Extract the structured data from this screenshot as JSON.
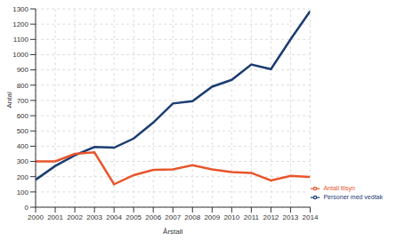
{
  "chart_data": {
    "type": "line",
    "x_label": "Årstall",
    "y_label": "Antal",
    "x": [
      2000,
      2001,
      2002,
      2003,
      2004,
      2005,
      2006,
      2007,
      2008,
      2009,
      2010,
      2011,
      2012,
      2013,
      2014
    ],
    "series": [
      {
        "name": "Personer med vedtak",
        "color": "#1c3d73",
        "values": [
          180,
          270,
          340,
          395,
          390,
          450,
          555,
          680,
          695,
          790,
          835,
          935,
          905,
          1100,
          1285
        ]
      },
      {
        "name": "Antall tilsyn",
        "color": "#e8552b",
        "values": [
          300,
          300,
          350,
          360,
          150,
          210,
          245,
          248,
          275,
          248,
          230,
          225,
          175,
          205,
          198
        ]
      }
    ],
    "xlim": [
      2000,
      2014
    ],
    "xticks": [
      2000,
      2001,
      2002,
      2003,
      2004,
      2005,
      2006,
      2007,
      2008,
      2009,
      2010,
      2011,
      2012,
      2013,
      2014
    ],
    "ylim": [
      0,
      1300
    ],
    "yticks": [
      0,
      100,
      200,
      300,
      400,
      500,
      600,
      700,
      800,
      900,
      1000,
      1100,
      1200,
      1300
    ],
    "grid": true,
    "legend": "lower right"
  }
}
